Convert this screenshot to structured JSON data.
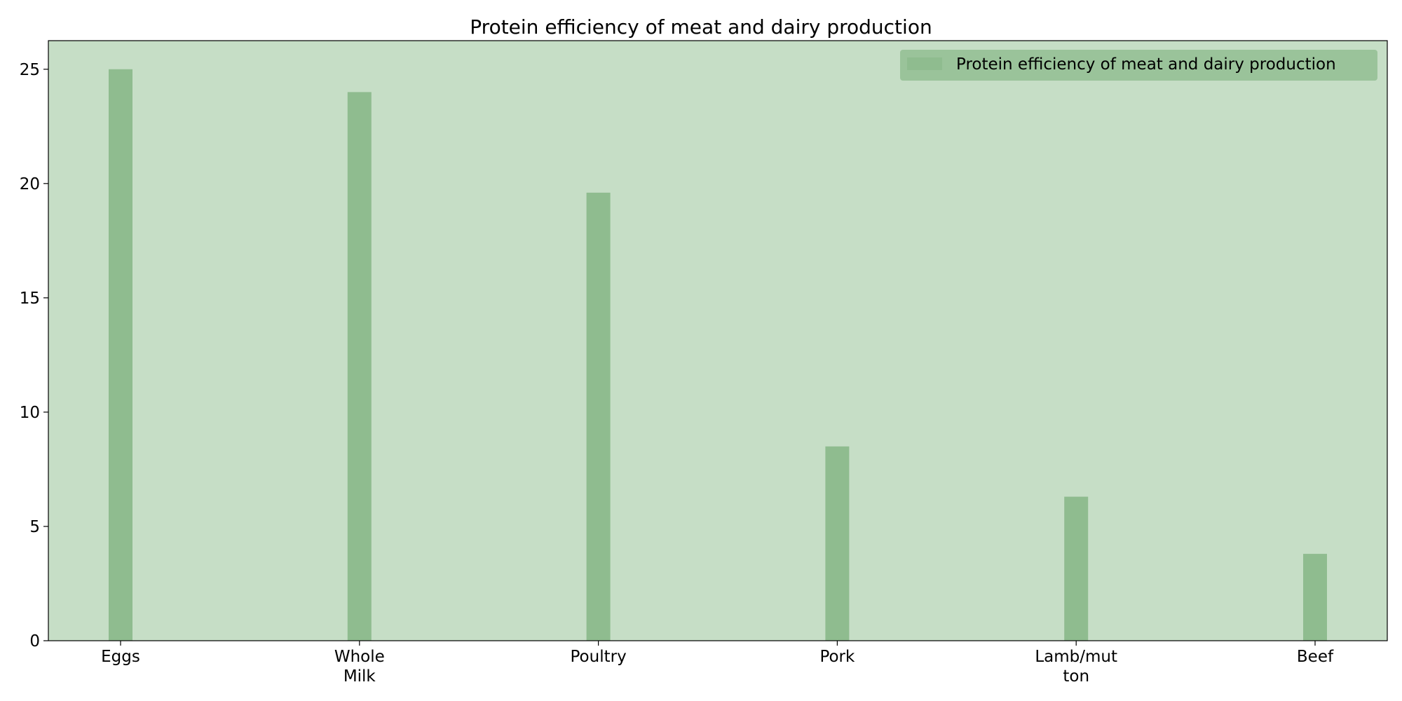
{
  "chart_data": {
    "type": "bar",
    "title": "Protein efficiency of meat and dairy production",
    "xlabel": "",
    "ylabel": "",
    "categories": [
      [
        "Eggs"
      ],
      [
        "Whole",
        "Milk"
      ],
      [
        "Poultry"
      ],
      [
        "Pork"
      ],
      [
        "Lamb/mut",
        "ton"
      ],
      [
        "Beef"
      ]
    ],
    "series": [
      {
        "name": "Protein efficiency of meat and dairy production",
        "values": [
          25,
          24,
          19.6,
          8.5,
          6.3,
          3.8
        ]
      }
    ],
    "ylim": [
      0,
      26.25
    ],
    "yticks": [
      0,
      5,
      10,
      15,
      20,
      25
    ],
    "grid": false,
    "legend_position": "top-right",
    "colors": {
      "plot_background": "#c6dec6",
      "bar": "#8fbc8f",
      "legend_box": "#8fbc8f",
      "axis": "#000000"
    }
  }
}
